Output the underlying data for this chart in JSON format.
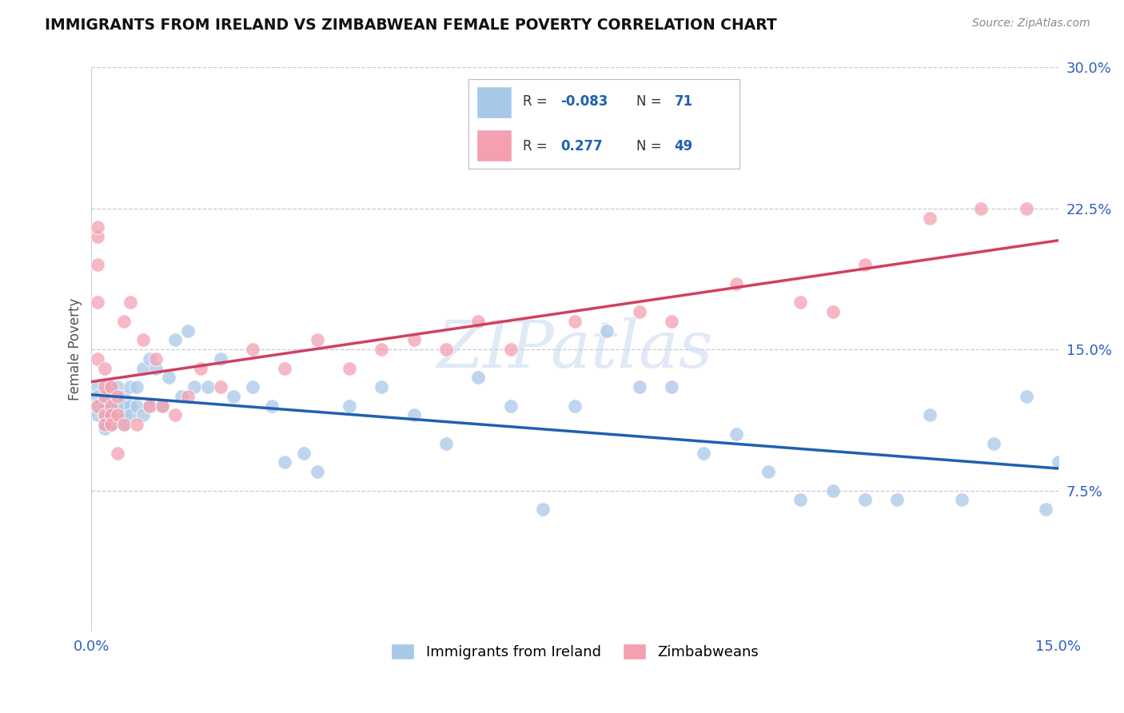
{
  "title": "IMMIGRANTS FROM IRELAND VS ZIMBABWEAN FEMALE POVERTY CORRELATION CHART",
  "source": "Source: ZipAtlas.com",
  "xlabel_ireland": "Immigrants from Ireland",
  "xlabel_zimbabwe": "Zimbabweans",
  "ylabel": "Female Poverty",
  "x_min": 0.0,
  "x_max": 0.15,
  "y_min": 0.0,
  "y_max": 0.3,
  "x_ticks": [
    0.0,
    0.15
  ],
  "x_tick_labels": [
    "0.0%",
    "15.0%"
  ],
  "y_ticks": [
    0.075,
    0.15,
    0.225,
    0.3
  ],
  "y_tick_labels": [
    "7.5%",
    "15.0%",
    "22.5%",
    "30.0%"
  ],
  "legend_ireland_R": "-0.083",
  "legend_ireland_N": "71",
  "legend_zimbabwe_R": "0.277",
  "legend_zimbabwe_N": "49",
  "ireland_color": "#a8c8e8",
  "zimbabwe_color": "#f4a0b0",
  "ireland_line_color": "#2060b0",
  "zimbabwe_line_color": "#d04060",
  "watermark": "ZIPatlas",
  "ireland_x": [
    0.001,
    0.001,
    0.001,
    0.001,
    0.002,
    0.002,
    0.002,
    0.002,
    0.002,
    0.002,
    0.003,
    0.003,
    0.003,
    0.003,
    0.004,
    0.004,
    0.004,
    0.004,
    0.005,
    0.005,
    0.005,
    0.005,
    0.006,
    0.006,
    0.006,
    0.007,
    0.007,
    0.008,
    0.008,
    0.009,
    0.009,
    0.01,
    0.011,
    0.012,
    0.013,
    0.014,
    0.015,
    0.016,
    0.018,
    0.02,
    0.022,
    0.025,
    0.028,
    0.03,
    0.033,
    0.035,
    0.04,
    0.045,
    0.05,
    0.055,
    0.06,
    0.065,
    0.07,
    0.075,
    0.08,
    0.085,
    0.09,
    0.095,
    0.1,
    0.105,
    0.11,
    0.115,
    0.12,
    0.125,
    0.13,
    0.135,
    0.14,
    0.145,
    0.148,
    0.15,
    0.152
  ],
  "ireland_y": [
    0.13,
    0.12,
    0.115,
    0.125,
    0.12,
    0.115,
    0.11,
    0.125,
    0.115,
    0.108,
    0.13,
    0.115,
    0.12,
    0.11,
    0.13,
    0.125,
    0.115,
    0.12,
    0.125,
    0.115,
    0.12,
    0.11,
    0.13,
    0.12,
    0.115,
    0.13,
    0.12,
    0.14,
    0.115,
    0.145,
    0.12,
    0.14,
    0.12,
    0.135,
    0.155,
    0.125,
    0.16,
    0.13,
    0.13,
    0.145,
    0.125,
    0.13,
    0.12,
    0.09,
    0.095,
    0.085,
    0.12,
    0.13,
    0.115,
    0.1,
    0.135,
    0.12,
    0.065,
    0.12,
    0.16,
    0.13,
    0.13,
    0.095,
    0.105,
    0.085,
    0.07,
    0.075,
    0.07,
    0.07,
    0.115,
    0.07,
    0.1,
    0.125,
    0.065,
    0.09,
    0.08
  ],
  "zimbabwe_x": [
    0.001,
    0.001,
    0.001,
    0.001,
    0.001,
    0.001,
    0.002,
    0.002,
    0.002,
    0.002,
    0.002,
    0.003,
    0.003,
    0.003,
    0.003,
    0.004,
    0.004,
    0.004,
    0.005,
    0.005,
    0.006,
    0.007,
    0.008,
    0.009,
    0.01,
    0.011,
    0.013,
    0.015,
    0.017,
    0.02,
    0.025,
    0.03,
    0.035,
    0.04,
    0.045,
    0.05,
    0.055,
    0.06,
    0.065,
    0.075,
    0.085,
    0.09,
    0.1,
    0.11,
    0.115,
    0.12,
    0.13,
    0.138,
    0.145
  ],
  "zimbabwe_y": [
    0.21,
    0.195,
    0.175,
    0.215,
    0.145,
    0.12,
    0.14,
    0.125,
    0.115,
    0.11,
    0.13,
    0.12,
    0.13,
    0.115,
    0.11,
    0.125,
    0.115,
    0.095,
    0.165,
    0.11,
    0.175,
    0.11,
    0.155,
    0.12,
    0.145,
    0.12,
    0.115,
    0.125,
    0.14,
    0.13,
    0.15,
    0.14,
    0.155,
    0.14,
    0.15,
    0.155,
    0.15,
    0.165,
    0.15,
    0.165,
    0.17,
    0.165,
    0.185,
    0.175,
    0.17,
    0.195,
    0.22,
    0.225,
    0.225
  ],
  "background_color": "#ffffff",
  "grid_color": "#c8c8d8"
}
